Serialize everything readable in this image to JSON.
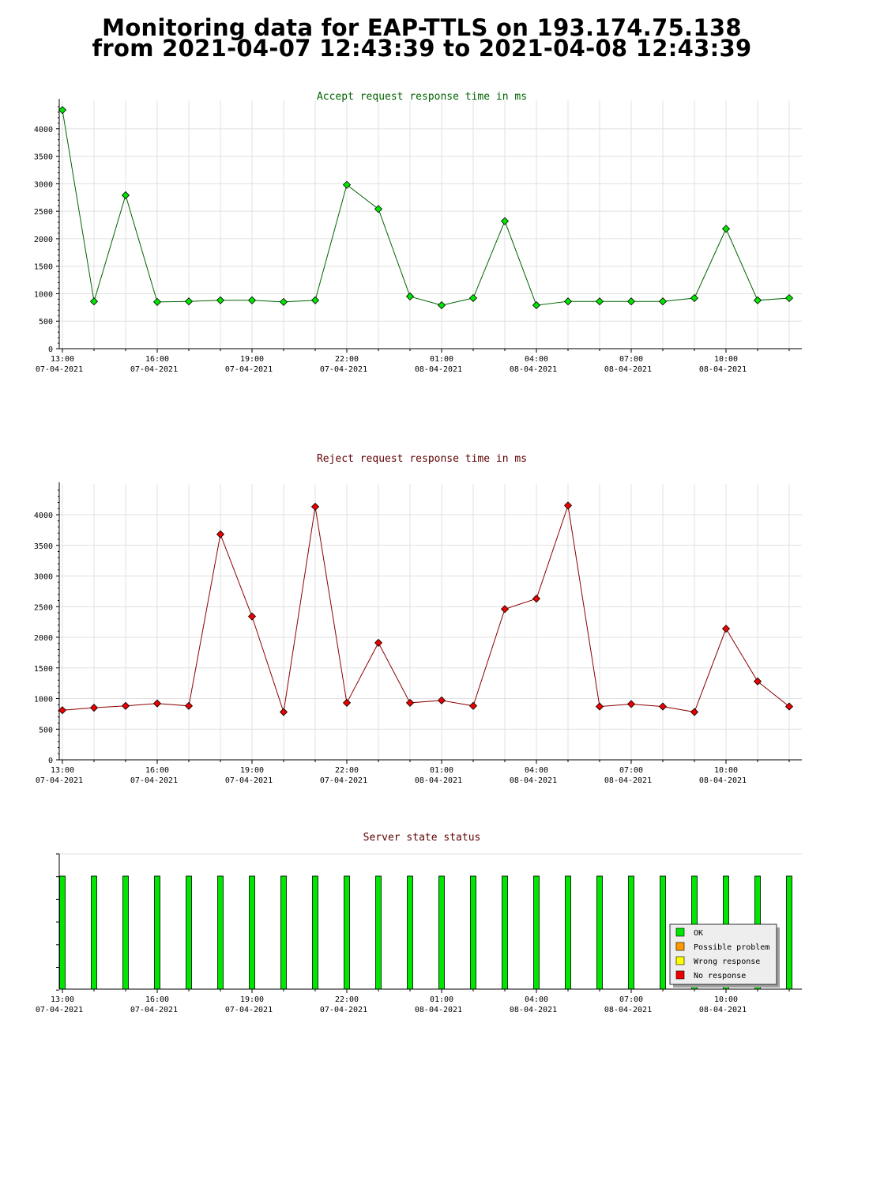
{
  "title": {
    "line1": "Monitoring data for EAP-TTLS on 193.174.75.138",
    "line2": "from 2021-04-07 12:43:39 to 2021-04-08 12:43:39"
  },
  "x_ticks": [
    {
      "time": "13:00",
      "date": "07-04-2021"
    },
    {
      "time": "16:00",
      "date": "07-04-2021"
    },
    {
      "time": "19:00",
      "date": "07-04-2021"
    },
    {
      "time": "22:00",
      "date": "07-04-2021"
    },
    {
      "time": "01:00",
      "date": "08-04-2021"
    },
    {
      "time": "04:00",
      "date": "08-04-2021"
    },
    {
      "time": "07:00",
      "date": "08-04-2021"
    },
    {
      "time": "10:00",
      "date": "08-04-2021"
    }
  ],
  "colors": {
    "accept_line": "#006400",
    "accept_point": "#00e600",
    "reject_line": "#8b0000",
    "reject_point": "#ee0000",
    "accept_title": "#006400",
    "reject_title": "#600000",
    "status_title": "#600000",
    "ok": "#00e600",
    "possible_problem": "#ff9900",
    "wrong_response": "#ffff00",
    "no_response": "#ee0000"
  },
  "chart_data": [
    {
      "type": "line",
      "title": "Accept request response time in ms",
      "x": [
        "13:00",
        "14:00",
        "15:00",
        "16:00",
        "17:00",
        "18:00",
        "19:00",
        "20:00",
        "21:00",
        "22:00",
        "23:00",
        "00:00",
        "01:00",
        "02:00",
        "03:00",
        "04:00",
        "05:00",
        "06:00",
        "07:00",
        "08:00",
        "09:00",
        "10:00",
        "11:00",
        "12:00"
      ],
      "values": [
        4340,
        860,
        2790,
        850,
        860,
        880,
        880,
        850,
        880,
        2980,
        2540,
        950,
        790,
        920,
        2320,
        790,
        860,
        860,
        860,
        860,
        920,
        2180,
        880,
        920
      ],
      "ylim": [
        0,
        4400
      ],
      "yticks": [
        0,
        500,
        1000,
        1500,
        2000,
        2500,
        3000,
        3500,
        4000
      ],
      "grid": true
    },
    {
      "type": "line",
      "title": "Reject request response time in ms",
      "x": [
        "13:00",
        "14:00",
        "15:00",
        "16:00",
        "17:00",
        "18:00",
        "19:00",
        "20:00",
        "21:00",
        "22:00",
        "23:00",
        "00:00",
        "01:00",
        "02:00",
        "03:00",
        "04:00",
        "05:00",
        "06:00",
        "07:00",
        "08:00",
        "09:00",
        "10:00",
        "11:00",
        "12:00"
      ],
      "values": [
        810,
        850,
        880,
        920,
        880,
        3680,
        2340,
        780,
        4130,
        930,
        1910,
        930,
        970,
        880,
        2460,
        2630,
        4150,
        870,
        910,
        870,
        780,
        2140,
        1280,
        870
      ],
      "ylim": [
        0,
        4400
      ],
      "yticks": [
        0,
        500,
        1000,
        1500,
        2000,
        2500,
        3000,
        3500,
        4000
      ],
      "grid": true
    },
    {
      "type": "bar",
      "title": "Server state status",
      "x": [
        "13:00",
        "14:00",
        "15:00",
        "16:00",
        "17:00",
        "18:00",
        "19:00",
        "20:00",
        "21:00",
        "22:00",
        "23:00",
        "00:00",
        "01:00",
        "02:00",
        "03:00",
        "04:00",
        "05:00",
        "06:00",
        "07:00",
        "08:00",
        "09:00",
        "10:00",
        "11:00",
        "12:00"
      ],
      "states": [
        "OK",
        "OK",
        "OK",
        "OK",
        "OK",
        "OK",
        "OK",
        "OK",
        "OK",
        "OK",
        "OK",
        "OK",
        "OK",
        "OK",
        "OK",
        "OK",
        "OK",
        "OK",
        "OK",
        "OK",
        "OK",
        "OK",
        "OK",
        "OK"
      ],
      "legend": [
        "OK",
        "Possible problem",
        "Wrong response",
        "No response"
      ],
      "legend_position": "bottom-right"
    }
  ]
}
